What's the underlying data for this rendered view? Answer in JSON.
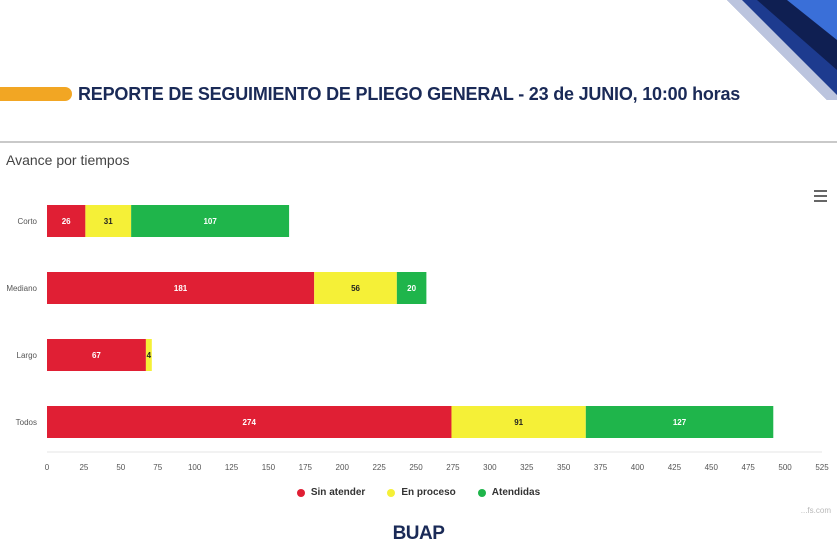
{
  "header": {
    "title": "REPORTE DE SEGUIMIENTO DE PLIEGO GENERAL - 23 de JUNIO, 10:00 horas",
    "accent_color": "#f2a623"
  },
  "menu_icon": "hamburger-icon",
  "chart_data": {
    "type": "bar",
    "orientation": "horizontal",
    "stacked": true,
    "title": "Avance por tiempos",
    "categories": [
      "Corto",
      "Mediano",
      "Largo",
      "Todos"
    ],
    "series": [
      {
        "name": "Sin atender",
        "color": "#e01f34",
        "values": [
          26,
          181,
          67,
          274
        ]
      },
      {
        "name": "En proceso",
        "color": "#f5f037",
        "values": [
          31,
          56,
          4,
          91
        ]
      },
      {
        "name": "Atendidas",
        "color": "#1fb54b",
        "values": [
          107,
          20,
          0,
          127
        ]
      }
    ],
    "xlim": [
      0,
      525
    ],
    "xticks": [
      0,
      25,
      50,
      75,
      100,
      125,
      150,
      175,
      200,
      225,
      250,
      275,
      300,
      325,
      350,
      375,
      400,
      425,
      450,
      475,
      500,
      525
    ],
    "legend_position": "bottom-center",
    "grid": false
  },
  "footer": {
    "brand": "BUAP",
    "credit": "...fs.com"
  }
}
